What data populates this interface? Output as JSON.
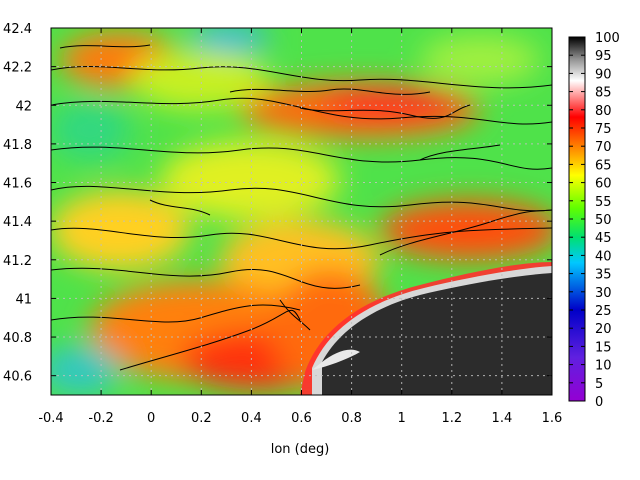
{
  "chart_data": {
    "type": "heatmap",
    "title": "",
    "xlabel": "lon (deg)",
    "ylabel": "",
    "xlim": [
      -0.4,
      1.6
    ],
    "ylim": [
      40.5,
      42.4
    ],
    "x_ticks": [
      -0.4,
      -0.2,
      0,
      0.2,
      0.4,
      0.6,
      0.8,
      1,
      1.2,
      1.4,
      1.6
    ],
    "y_ticks": [
      40.6,
      40.8,
      41,
      41.2,
      41.4,
      41.6,
      41.8,
      42,
      42.2,
      42.4
    ],
    "x_tick_labels": [
      "-0.4",
      "-0.2",
      "0",
      "0.2",
      "0.4",
      "0.6",
      "0.8",
      "1",
      "1.2",
      "1.4",
      "1.6"
    ],
    "y_tick_labels": [
      "40.6",
      "40.8",
      "41",
      "41.2",
      "41.4",
      "41.6",
      "41.8",
      "42",
      "42.2",
      "42.4"
    ],
    "colorbar": {
      "range": [
        0,
        100
      ],
      "ticks": [
        0,
        5,
        10,
        15,
        20,
        25,
        30,
        35,
        40,
        45,
        50,
        55,
        60,
        65,
        70,
        75,
        80,
        85,
        90,
        95,
        100
      ],
      "tick_labels": [
        "0",
        "5",
        "10",
        "15",
        "20",
        "25",
        "30",
        "35",
        "40",
        "45",
        "50",
        "55",
        "60",
        "65",
        "70",
        "75",
        "80",
        "85",
        "90",
        "95",
        "100"
      ],
      "colors": [
        "#9400d3",
        "#0000c8",
        "#00c8ff",
        "#00e070",
        "#60ff00",
        "#ffff00",
        "#ff8000",
        "#ff0000",
        "#ffffff",
        "#000000"
      ]
    },
    "grid": true,
    "contours": true,
    "legend": "colorbar-right"
  }
}
